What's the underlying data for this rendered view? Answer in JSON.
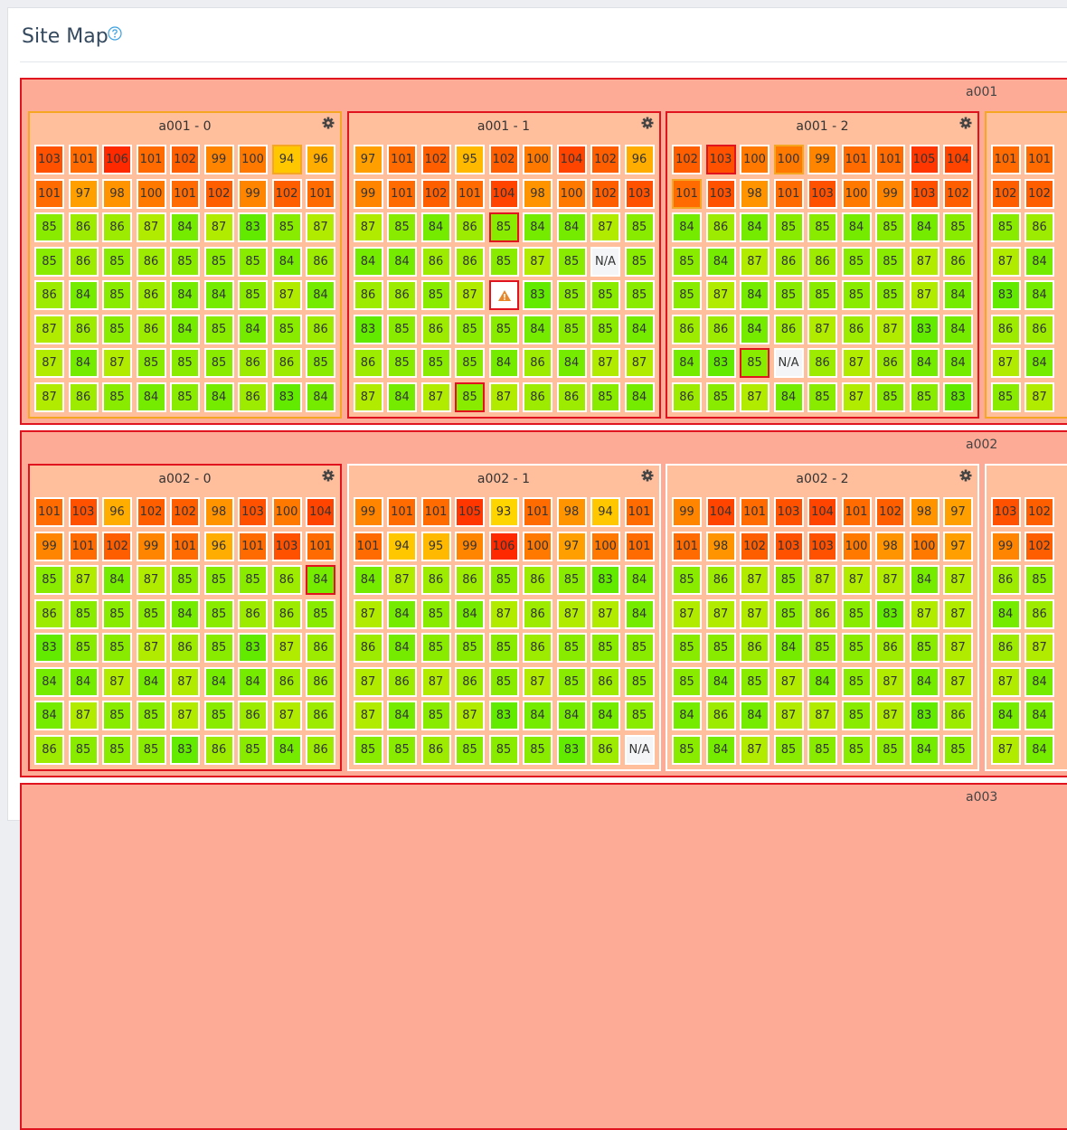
{
  "header": {
    "title": "Site Map"
  },
  "groups": [
    {
      "label": "a001",
      "racks": [
        {
          "label": "a001 - 0",
          "border": "#f5a623",
          "cells": [
            [
              103,
              101,
              106,
              101,
              102,
              99,
              100,
              {
                "value": 94,
                "border": "#f5a623"
              },
              96
            ],
            [
              101,
              97,
              98,
              100,
              101,
              102,
              99,
              102,
              101
            ],
            [
              85,
              86,
              86,
              87,
              84,
              87,
              83,
              85,
              87
            ],
            [
              85,
              86,
              85,
              86,
              85,
              85,
              85,
              84,
              86
            ],
            [
              86,
              84,
              85,
              86,
              84,
              84,
              85,
              87,
              84
            ],
            [
              87,
              86,
              85,
              86,
              84,
              85,
              84,
              85,
              86
            ],
            [
              87,
              84,
              87,
              85,
              85,
              85,
              86,
              86,
              85
            ],
            [
              87,
              86,
              85,
              84,
              85,
              84,
              86,
              83,
              84
            ]
          ]
        },
        {
          "label": "a001 - 1",
          "border": "#e0141e",
          "cells": [
            [
              97,
              101,
              102,
              95,
              102,
              100,
              104,
              102,
              96
            ],
            [
              99,
              101,
              102,
              101,
              104,
              98,
              100,
              102,
              103
            ],
            [
              87,
              85,
              84,
              86,
              {
                "value": 85,
                "border": "#e0141e"
              },
              84,
              84,
              87,
              85
            ],
            [
              84,
              84,
              86,
              86,
              85,
              87,
              85,
              "N/A",
              85
            ],
            [
              86,
              86,
              85,
              87,
              {
                "value": null,
                "icon": "warning",
                "border": "#e0141e"
              },
              83,
              85,
              85,
              85
            ],
            [
              83,
              85,
              86,
              85,
              85,
              84,
              85,
              85,
              84
            ],
            [
              86,
              85,
              85,
              85,
              84,
              86,
              84,
              87,
              87
            ],
            [
              87,
              84,
              87,
              {
                "value": 85,
                "border": "#e0141e"
              },
              87,
              86,
              86,
              85,
              84
            ]
          ]
        },
        {
          "label": "a001 - 2",
          "border": "#e0141e",
          "cells": [
            [
              102,
              {
                "value": 103,
                "border": "#e0141e"
              },
              100,
              {
                "value": 100,
                "border": "#f5a623"
              },
              99,
              101,
              101,
              105,
              104
            ],
            [
              {
                "value": 101,
                "border": "#f5a623"
              },
              103,
              98,
              101,
              103,
              100,
              99,
              103,
              102
            ],
            [
              84,
              86,
              84,
              85,
              85,
              84,
              85,
              84,
              85
            ],
            [
              85,
              84,
              87,
              86,
              86,
              85,
              85,
              87,
              86
            ],
            [
              85,
              87,
              84,
              85,
              85,
              85,
              85,
              87,
              84
            ],
            [
              86,
              86,
              84,
              86,
              87,
              86,
              87,
              83,
              84
            ],
            [
              84,
              83,
              {
                "value": 85,
                "border": "#e0141e"
              },
              "N/A",
              86,
              87,
              86,
              84,
              84
            ],
            [
              86,
              85,
              87,
              84,
              85,
              87,
              85,
              85,
              83
            ]
          ]
        },
        {
          "border": "#f5a623",
          "cells": [
            [
              101,
              101
            ],
            [
              102,
              102
            ],
            [
              85,
              86
            ],
            [
              87,
              84
            ],
            [
              83,
              84
            ],
            [
              86,
              86
            ],
            [
              87,
              84
            ],
            [
              85,
              87
            ]
          ]
        }
      ]
    },
    {
      "label": "a002",
      "racks": [
        {
          "label": "a002 - 0",
          "border": "#e0141e",
          "cells": [
            [
              101,
              103,
              96,
              102,
              102,
              98,
              103,
              100,
              104
            ],
            [
              99,
              101,
              102,
              99,
              101,
              96,
              101,
              103,
              101
            ],
            [
              85,
              87,
              84,
              87,
              85,
              85,
              85,
              86,
              {
                "value": 84,
                "border": "#e0141e"
              }
            ],
            [
              86,
              85,
              85,
              85,
              84,
              85,
              86,
              86,
              85
            ],
            [
              83,
              85,
              85,
              87,
              86,
              85,
              83,
              87,
              86
            ],
            [
              84,
              84,
              87,
              84,
              87,
              84,
              84,
              86,
              86
            ],
            [
              84,
              87,
              85,
              85,
              87,
              85,
              86,
              87,
              86
            ],
            [
              86,
              85,
              85,
              85,
              83,
              86,
              85,
              84,
              86
            ]
          ]
        },
        {
          "label": "a002 - 1",
          "border": "#ffffff",
          "cells": [
            [
              99,
              101,
              101,
              105,
              93,
              101,
              98,
              94,
              101
            ],
            [
              101,
              94,
              95,
              99,
              106,
              100,
              97,
              100,
              101
            ],
            [
              84,
              87,
              86,
              86,
              85,
              86,
              85,
              83,
              84
            ],
            [
              87,
              84,
              85,
              84,
              87,
              86,
              87,
              87,
              84
            ],
            [
              86,
              84,
              85,
              85,
              85,
              86,
              85,
              85,
              85
            ],
            [
              87,
              86,
              87,
              86,
              85,
              87,
              85,
              86,
              85
            ],
            [
              87,
              84,
              85,
              87,
              83,
              84,
              84,
              84,
              85
            ],
            [
              85,
              85,
              86,
              85,
              85,
              85,
              83,
              86,
              "N/A"
            ]
          ]
        },
        {
          "label": "a002 - 2",
          "border": "#ffffff",
          "cells": [
            [
              99,
              104,
              101,
              103,
              104,
              101,
              102,
              98,
              97
            ],
            [
              101,
              98,
              102,
              103,
              103,
              100,
              98,
              100,
              97
            ],
            [
              85,
              86,
              87,
              85,
              87,
              87,
              87,
              84,
              87
            ],
            [
              87,
              87,
              87,
              85,
              86,
              85,
              83,
              87,
              87
            ],
            [
              85,
              85,
              86,
              84,
              85,
              85,
              86,
              85,
              87
            ],
            [
              85,
              84,
              85,
              87,
              84,
              85,
              87,
              84,
              87
            ],
            [
              84,
              86,
              84,
              87,
              87,
              85,
              87,
              83,
              86
            ],
            [
              85,
              84,
              87,
              85,
              85,
              85,
              85,
              84,
              85
            ]
          ]
        },
        {
          "border": "#ffffff",
          "cells": [
            [
              103,
              102
            ],
            [
              99,
              102
            ],
            [
              86,
              85
            ],
            [
              84,
              86
            ],
            [
              86,
              87
            ],
            [
              87,
              84
            ],
            [
              84,
              84
            ],
            [
              87,
              84
            ]
          ]
        }
      ]
    },
    {
      "label": "a003",
      "racks": []
    }
  ]
}
